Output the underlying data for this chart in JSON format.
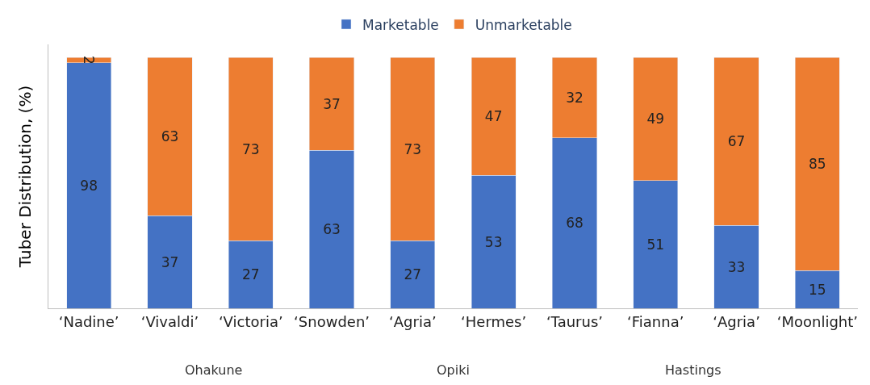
{
  "chart_data": {
    "type": "bar",
    "stacked": true,
    "ylabel": "Tuber Distribution, (%)",
    "categories": [
      "‘Nadine’",
      "‘Vivaldi’",
      "‘Victoria’",
      "‘Snowden’",
      "‘Agria’",
      "‘Hermes’",
      "‘Taurus’",
      "‘Fianna’",
      "‘Agria’",
      "‘Moonlight’"
    ],
    "series": [
      {
        "name": "Marketable",
        "color": "#4472c4",
        "values": [
          98,
          37,
          27,
          63,
          27,
          53,
          68,
          51,
          33,
          15
        ]
      },
      {
        "name": "Unmarketable",
        "color": "#ed7d31",
        "values": [
          2,
          63,
          73,
          37,
          73,
          47,
          32,
          49,
          67,
          85
        ]
      }
    ],
    "data_labels": true,
    "legend": "top",
    "tick_labels": "x",
    "annotations": [
      "Ohakune",
      "Opiki",
      "Hastings"
    ]
  }
}
